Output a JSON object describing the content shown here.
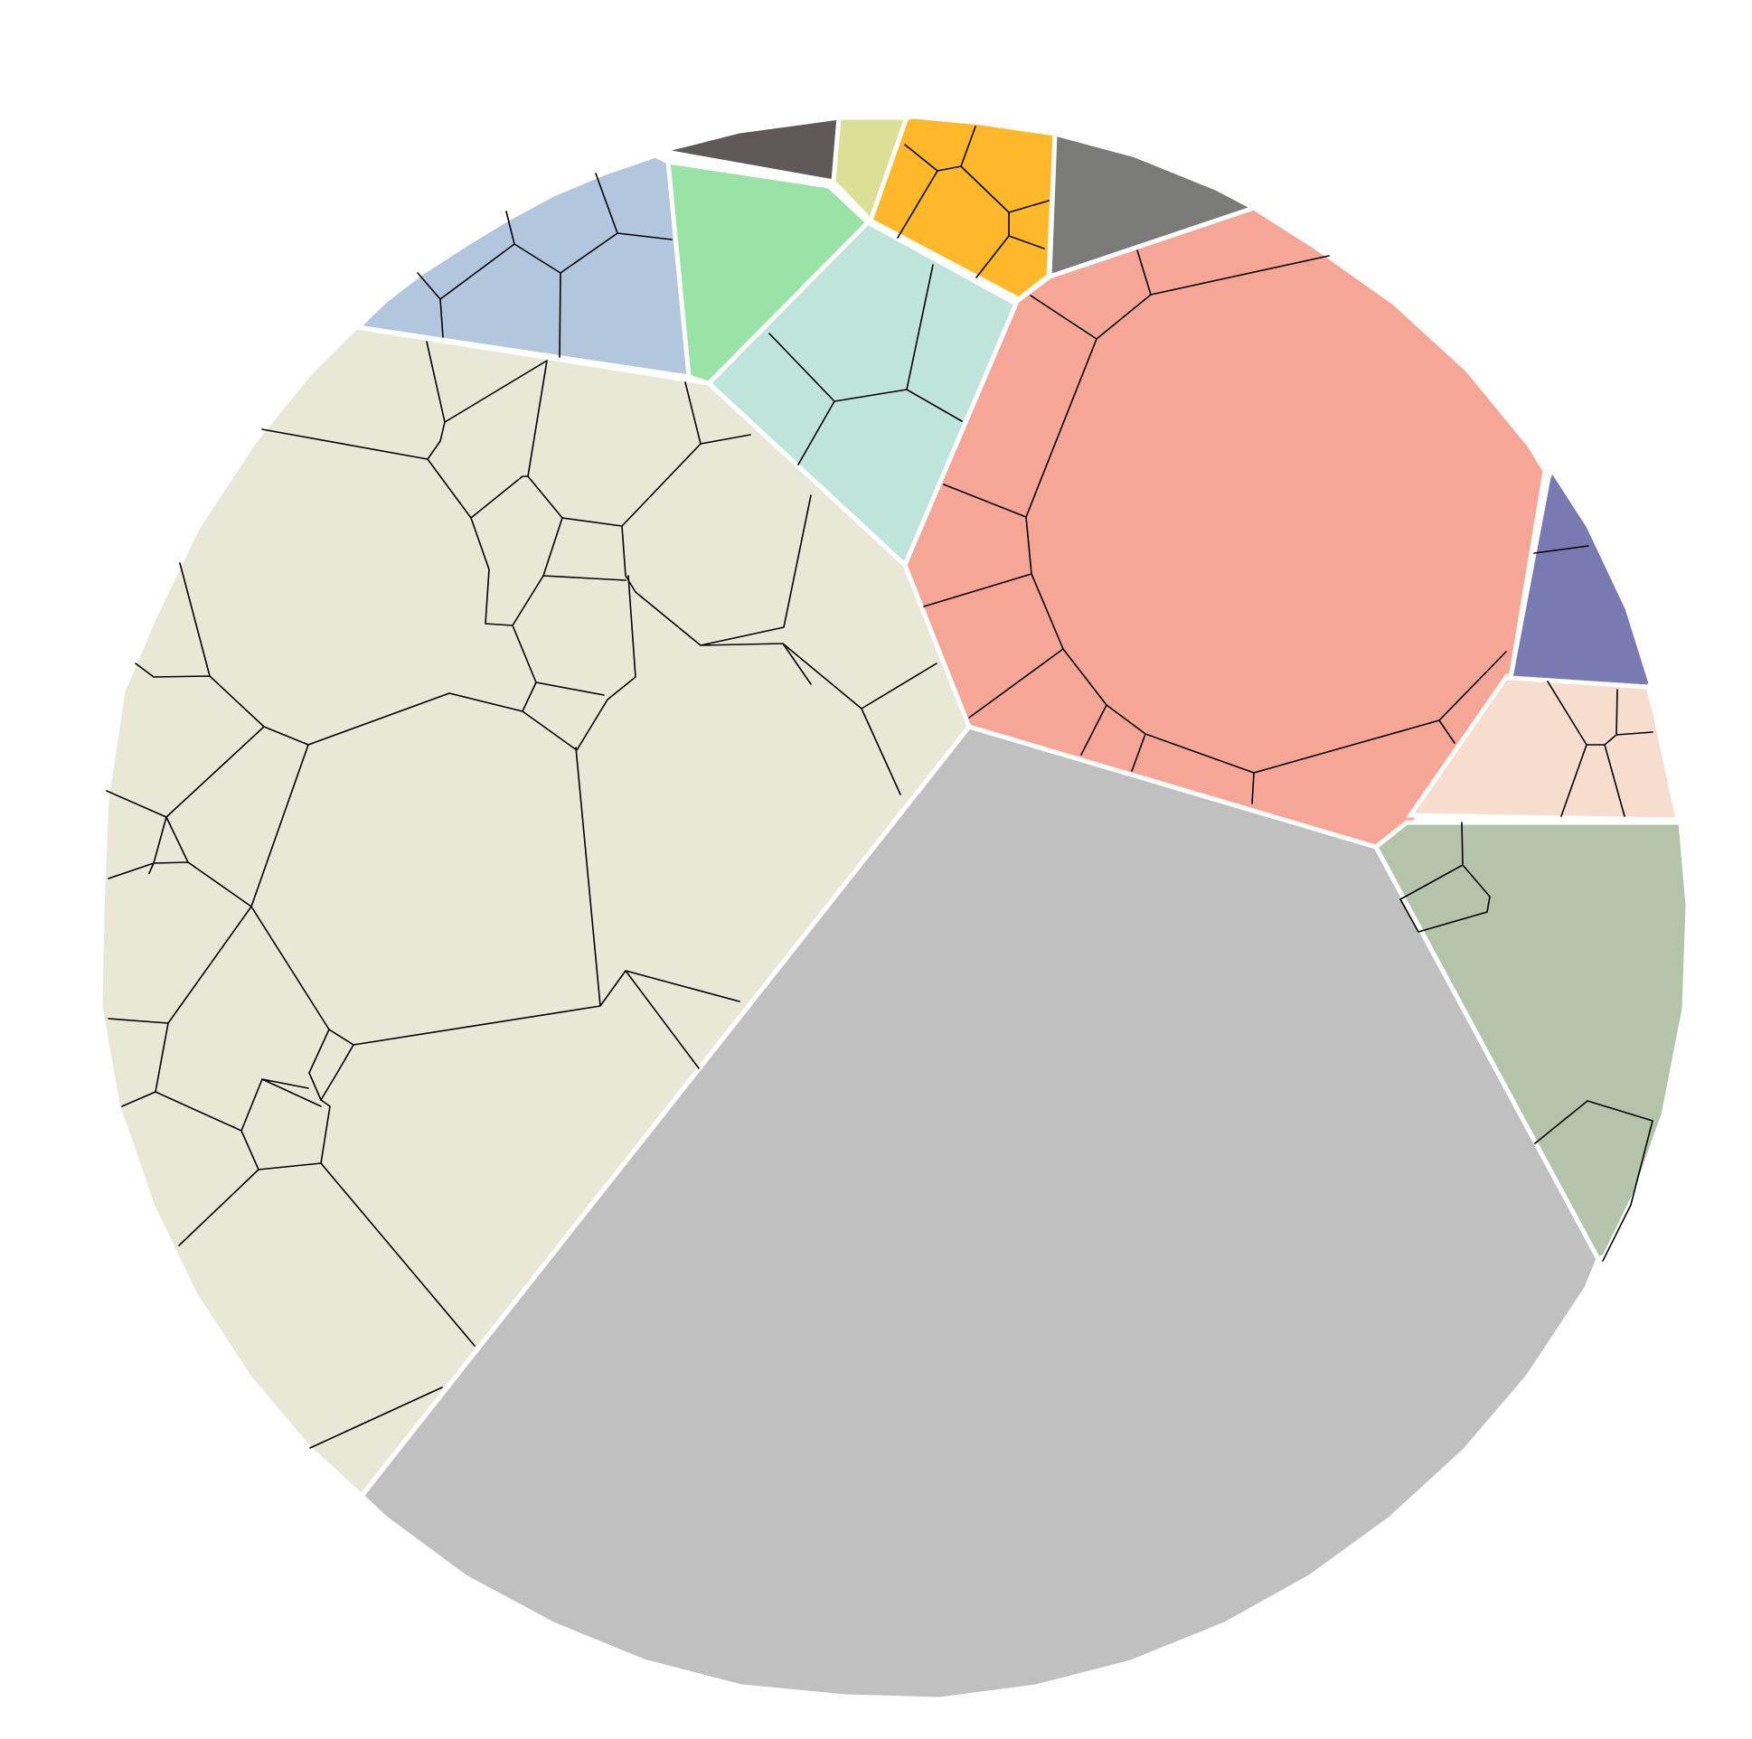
{
  "diagram": {
    "type": "voronoi-treemap",
    "shape": "circle",
    "background_color": "#ffffff",
    "region_border_color": "#ffffff",
    "cell_border_color": "#000000",
    "regions": [
      {
        "id": "grey-large",
        "color": "#c0c0c0"
      },
      {
        "id": "beige",
        "color": "#e9e8d6"
      },
      {
        "id": "salmon",
        "color": "#f5a697"
      },
      {
        "id": "sage-green",
        "color": "#b4c4ab"
      },
      {
        "id": "peach",
        "color": "#f7ddce"
      },
      {
        "id": "indigo",
        "color": "#7a7ab2"
      },
      {
        "id": "mint",
        "color": "#bfe4dc"
      },
      {
        "id": "light-green",
        "color": "#98e3a5"
      },
      {
        "id": "steel-blue",
        "color": "#b2c6de"
      },
      {
        "id": "charcoal",
        "color": "#5f5959"
      },
      {
        "id": "pale-yellow",
        "color": "#dce097"
      },
      {
        "id": "amber",
        "color": "#feb829"
      },
      {
        "id": "dark-grey",
        "color": "#7a7b78"
      }
    ]
  }
}
